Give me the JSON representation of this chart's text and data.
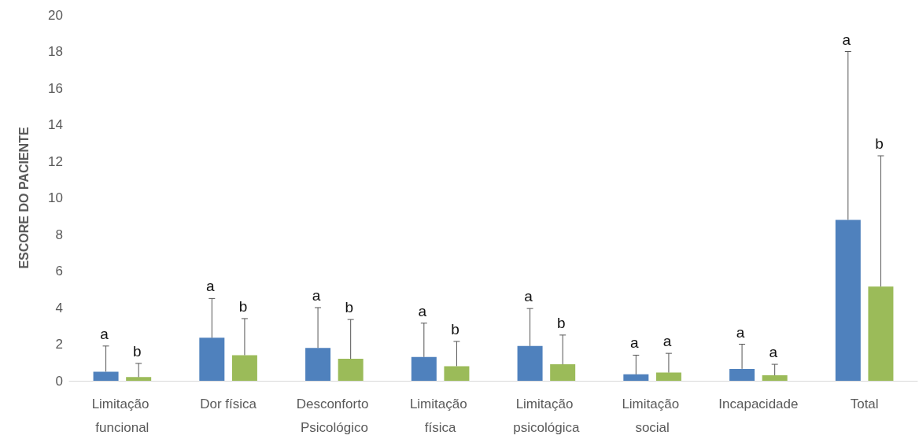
{
  "chart_data": {
    "type": "bar",
    "ylabel": "ESCORE DO PACIENTE",
    "categories": [
      "Limitação funcional",
      "Dor física",
      "Desconforto Psicológico",
      "Limitação física",
      "Limitação psicológica",
      "Limitação social",
      "Incapacidade",
      "Total"
    ],
    "series": [
      {
        "color": "#4f81bd",
        "values": [
          0.5,
          2.35,
          1.8,
          1.3,
          1.9,
          0.35,
          0.65,
          8.8
        ],
        "errors": [
          [
            0.5,
            1.9
          ],
          [
            2.35,
            4.5
          ],
          [
            1.8,
            4.0
          ],
          [
            1.3,
            3.15
          ],
          [
            1.9,
            3.95
          ],
          [
            0.35,
            1.4
          ],
          [
            0.65,
            2.0
          ],
          [
            8.8,
            18.0
          ]
        ]
      },
      {
        "color": "#9bbb59",
        "values": [
          0.2,
          1.4,
          1.2,
          0.8,
          0.9,
          0.45,
          0.3,
          5.15
        ],
        "errors": [
          [
            0.2,
            0.95
          ],
          [
            1.4,
            3.4
          ],
          [
            1.2,
            3.35
          ],
          [
            0.8,
            2.15
          ],
          [
            0.9,
            2.5
          ],
          [
            0.45,
            1.5
          ],
          [
            0.3,
            0.9
          ],
          [
            5.15,
            12.3
          ]
        ]
      }
    ],
    "annotations": [
      "a",
      "b",
      "a",
      "b",
      "a",
      "b",
      "a",
      "b",
      "a",
      "b",
      "a",
      "a",
      "a",
      "a",
      "a",
      "b"
    ],
    "ylim": [
      0,
      20
    ],
    "yticks": [
      0,
      2,
      4,
      6,
      8,
      10,
      12,
      14,
      16,
      18,
      20
    ],
    "grid": false
  }
}
